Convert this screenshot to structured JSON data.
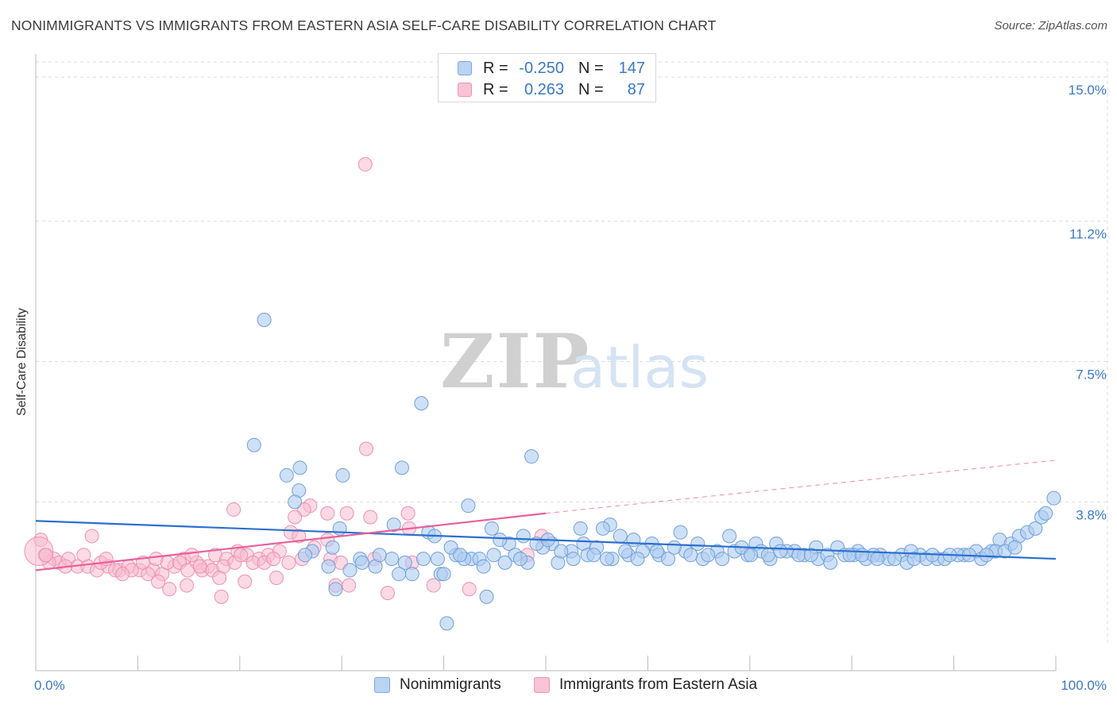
{
  "header": {
    "title": "NONIMMIGRANTS VS IMMIGRANTS FROM EASTERN ASIA SELF-CARE DISABILITY CORRELATION CHART",
    "source": "Source: ZipAtlas.com"
  },
  "colors": {
    "blue_fill": "#aecbf0",
    "blue_stroke": "#6fa0dc",
    "blue_line": "#2c6fcf",
    "pink_fill": "#f7bcd0",
    "pink_stroke": "#ef8fb0",
    "pink_line": "#e8609a",
    "axis_label": "#3a78c9",
    "grid": "#dcdcdc"
  },
  "legend": {
    "rows": [
      {
        "r_label": "R =",
        "r_value": "-0.250",
        "n_label": "N =",
        "n_value": "147"
      },
      {
        "r_label": "R =",
        "r_value": "0.263",
        "n_label": "N =",
        "n_value": "87"
      }
    ]
  },
  "chart_data": {
    "type": "scatter",
    "title": "NONIMMIGRANTS VS IMMIGRANTS FROM EASTERN ASIA SELF-CARE DISABILITY CORRELATION CHART",
    "xlabel": "",
    "ylabel": "Self-Care Disability",
    "x_tick_labels": [
      "0.0%",
      "100.0%"
    ],
    "y_tick_labels": [
      "15.0%",
      "11.2%",
      "7.5%",
      "3.8%"
    ],
    "y_ticks": [
      15.0,
      11.2,
      7.5,
      3.8
    ],
    "xlim": [
      0,
      100
    ],
    "ylim": [
      0,
      15.4
    ],
    "grid": true,
    "legend_position": "top-center",
    "watermark": "ZIPatlas",
    "series": [
      {
        "name": "Nonimmigrants",
        "R": -0.25,
        "N": 147,
        "trend": {
          "x": [
            0,
            100
          ],
          "y": [
            3.3,
            2.3
          ]
        },
        "points": [
          [
            22.4,
            8.6
          ],
          [
            37.8,
            6.4
          ],
          [
            21.4,
            5.3
          ],
          [
            48.6,
            5.0
          ],
          [
            25.9,
            4.7
          ],
          [
            35.9,
            4.7
          ],
          [
            24.6,
            4.5
          ],
          [
            30.1,
            4.5
          ],
          [
            25.8,
            4.1
          ],
          [
            25.4,
            3.8
          ],
          [
            42.4,
            3.7
          ],
          [
            29.8,
            3.1
          ],
          [
            35.1,
            3.2
          ],
          [
            44.7,
            3.1
          ],
          [
            38.5,
            3.0
          ],
          [
            39.1,
            2.9
          ],
          [
            29.1,
            2.6
          ],
          [
            27.1,
            2.5
          ],
          [
            46.4,
            2.7
          ],
          [
            50.6,
            2.7
          ],
          [
            53.4,
            3.1
          ],
          [
            53.7,
            2.7
          ],
          [
            56.3,
            3.2
          ],
          [
            55.6,
            3.1
          ],
          [
            57.3,
            2.9
          ],
          [
            60.4,
            2.7
          ],
          [
            63.2,
            3.0
          ],
          [
            64.9,
            2.7
          ],
          [
            68.0,
            2.9
          ],
          [
            70.6,
            2.7
          ],
          [
            72.6,
            2.7
          ],
          [
            74.4,
            2.5
          ],
          [
            76.5,
            2.6
          ],
          [
            78.6,
            2.6
          ],
          [
            80.6,
            2.5
          ],
          [
            82.8,
            2.4
          ],
          [
            84.9,
            2.4
          ],
          [
            86.7,
            2.4
          ],
          [
            88.4,
            2.3
          ],
          [
            91.0,
            2.4
          ],
          [
            92.2,
            2.5
          ],
          [
            93.7,
            2.5
          ],
          [
            94.5,
            2.8
          ],
          [
            95.6,
            2.7
          ],
          [
            96.4,
            2.9
          ],
          [
            97.2,
            3.0
          ],
          [
            98.0,
            3.1
          ],
          [
            98.6,
            3.4
          ],
          [
            99.0,
            3.5
          ],
          [
            99.8,
            3.9
          ],
          [
            31.8,
            2.3
          ],
          [
            33.3,
            2.1
          ],
          [
            34.9,
            2.3
          ],
          [
            36.9,
            1.9
          ],
          [
            39.4,
            2.3
          ],
          [
            39.7,
            1.9
          ],
          [
            41.2,
            2.4
          ],
          [
            42.7,
            2.3
          ],
          [
            43.5,
            2.3
          ],
          [
            44.9,
            2.4
          ],
          [
            47.0,
            2.4
          ],
          [
            48.2,
            2.2
          ],
          [
            49.7,
            2.6
          ],
          [
            51.2,
            2.2
          ],
          [
            52.5,
            2.5
          ],
          [
            54.1,
            2.4
          ],
          [
            55.0,
            2.6
          ],
          [
            56.5,
            2.3
          ],
          [
            58.1,
            2.4
          ],
          [
            59.5,
            2.5
          ],
          [
            61.1,
            2.4
          ],
          [
            62.0,
            2.3
          ],
          [
            63.7,
            2.5
          ],
          [
            65.4,
            2.3
          ],
          [
            66.8,
            2.5
          ],
          [
            68.5,
            2.5
          ],
          [
            69.8,
            2.4
          ],
          [
            71.1,
            2.5
          ],
          [
            72.0,
            2.3
          ],
          [
            73.6,
            2.5
          ],
          [
            75.3,
            2.4
          ],
          [
            76.7,
            2.3
          ],
          [
            77.6,
            2.4
          ],
          [
            79.3,
            2.4
          ],
          [
            80.2,
            2.4
          ],
          [
            81.4,
            2.3
          ],
          [
            82.1,
            2.4
          ],
          [
            83.6,
            2.3
          ],
          [
            85.8,
            2.5
          ],
          [
            87.3,
            2.3
          ],
          [
            89.1,
            2.3
          ],
          [
            90.4,
            2.4
          ],
          [
            91.5,
            2.4
          ],
          [
            92.7,
            2.3
          ],
          [
            94.1,
            2.5
          ],
          [
            95.0,
            2.5
          ],
          [
            96.0,
            2.6
          ],
          [
            26.4,
            2.4
          ],
          [
            28.7,
            2.1
          ],
          [
            30.8,
            2.0
          ],
          [
            33.7,
            2.4
          ],
          [
            36.2,
            2.2
          ],
          [
            38.0,
            2.3
          ],
          [
            40.7,
            2.6
          ],
          [
            42.0,
            2.3
          ],
          [
            43.9,
            2.1
          ],
          [
            46.0,
            2.2
          ],
          [
            47.5,
            2.3
          ],
          [
            49.1,
            2.7
          ],
          [
            51.5,
            2.5
          ],
          [
            52.7,
            2.3
          ],
          [
            54.7,
            2.4
          ],
          [
            56.0,
            2.3
          ],
          [
            57.8,
            2.5
          ],
          [
            59.0,
            2.3
          ],
          [
            60.9,
            2.5
          ],
          [
            62.6,
            2.6
          ],
          [
            64.2,
            2.4
          ],
          [
            65.9,
            2.4
          ],
          [
            67.3,
            2.3
          ],
          [
            69.2,
            2.6
          ],
          [
            70.1,
            2.4
          ],
          [
            71.8,
            2.4
          ],
          [
            73.0,
            2.5
          ],
          [
            74.8,
            2.4
          ],
          [
            76.0,
            2.4
          ],
          [
            77.9,
            2.2
          ],
          [
            79.8,
            2.4
          ],
          [
            81.0,
            2.4
          ],
          [
            82.5,
            2.3
          ],
          [
            84.2,
            2.3
          ],
          [
            85.4,
            2.2
          ],
          [
            86.1,
            2.3
          ],
          [
            87.9,
            2.4
          ],
          [
            89.6,
            2.4
          ],
          [
            93.2,
            2.4
          ],
          [
            29.4,
            1.5
          ],
          [
            40.0,
            1.9
          ],
          [
            44.2,
            1.3
          ],
          [
            35.6,
            1.9
          ],
          [
            40.3,
            0.6
          ],
          [
            32.0,
            2.2
          ],
          [
            41.6,
            2.4
          ],
          [
            45.5,
            2.8
          ],
          [
            47.8,
            2.9
          ],
          [
            50.2,
            2.8
          ],
          [
            58.6,
            2.8
          ]
        ]
      },
      {
        "name": "Immigrants from Eastern Asia",
        "R": 0.263,
        "N": 87,
        "trend": {
          "x": [
            0,
            50
          ],
          "y": [
            2.0,
            3.5
          ]
        },
        "trend_extension": {
          "x": [
            50,
            100
          ],
          "y": [
            3.5,
            4.9
          ]
        },
        "points": [
          [
            32.3,
            12.7
          ],
          [
            32.4,
            5.2
          ],
          [
            19.4,
            3.6
          ],
          [
            26.9,
            3.7
          ],
          [
            28.6,
            3.5
          ],
          [
            30.5,
            3.5
          ],
          [
            26.3,
            3.6
          ],
          [
            25.4,
            3.4
          ],
          [
            32.8,
            3.4
          ],
          [
            36.5,
            3.5
          ],
          [
            25.0,
            3.0
          ],
          [
            25.8,
            2.9
          ],
          [
            28.6,
            2.8
          ],
          [
            36.6,
            3.1
          ],
          [
            0.5,
            2.8
          ],
          [
            5.5,
            2.9
          ],
          [
            0.9,
            2.4
          ],
          [
            1.8,
            2.3
          ],
          [
            2.3,
            2.2
          ],
          [
            3.2,
            2.3
          ],
          [
            4.1,
            2.1
          ],
          [
            5.1,
            2.1
          ],
          [
            6.0,
            2.0
          ],
          [
            7.1,
            2.1
          ],
          [
            8.2,
            2.0
          ],
          [
            9.1,
            2.1
          ],
          [
            10.2,
            2.0
          ],
          [
            11.5,
            2.0
          ],
          [
            12.4,
            1.9
          ],
          [
            13.6,
            2.1
          ],
          [
            14.5,
            2.3
          ],
          [
            15.8,
            2.2
          ],
          [
            16.9,
            2.1
          ],
          [
            17.6,
            2.4
          ],
          [
            18.7,
            2.3
          ],
          [
            19.8,
            2.5
          ],
          [
            20.7,
            2.4
          ],
          [
            21.9,
            2.3
          ],
          [
            22.8,
            2.4
          ],
          [
            23.9,
            2.5
          ],
          [
            24.8,
            2.2
          ],
          [
            26.1,
            2.3
          ],
          [
            27.3,
            2.6
          ],
          [
            28.9,
            2.3
          ],
          [
            29.9,
            2.2
          ],
          [
            33.2,
            2.3
          ],
          [
            36.9,
            2.2
          ],
          [
            1.3,
            2.2
          ],
          [
            2.9,
            2.1
          ],
          [
            4.7,
            2.4
          ],
          [
            6.4,
            2.2
          ],
          [
            7.8,
            2.0
          ],
          [
            9.4,
            2.0
          ],
          [
            11.0,
            1.9
          ],
          [
            12.9,
            2.2
          ],
          [
            14.1,
            2.2
          ],
          [
            15.3,
            2.4
          ],
          [
            16.3,
            2.0
          ],
          [
            17.3,
            2.0
          ],
          [
            18.4,
            2.1
          ],
          [
            19.5,
            2.2
          ],
          [
            20.1,
            2.4
          ],
          [
            21.3,
            2.2
          ],
          [
            22.4,
            2.2
          ],
          [
            23.3,
            2.3
          ],
          [
            8.5,
            1.9
          ],
          [
            12.0,
            1.7
          ],
          [
            14.9,
            2.0
          ],
          [
            16.1,
            2.1
          ],
          [
            18.0,
            1.8
          ],
          [
            20.5,
            1.7
          ],
          [
            23.6,
            1.8
          ],
          [
            29.4,
            1.6
          ],
          [
            30.7,
            1.6
          ],
          [
            34.5,
            1.4
          ],
          [
            39.0,
            1.6
          ],
          [
            42.5,
            1.5
          ],
          [
            13.1,
            1.5
          ],
          [
            14.8,
            1.6
          ],
          [
            18.2,
            1.3
          ],
          [
            0.3,
            2.5
          ],
          [
            1.0,
            2.4
          ],
          [
            6.9,
            2.3
          ],
          [
            10.5,
            2.2
          ],
          [
            11.8,
            2.3
          ],
          [
            48.2,
            2.4
          ],
          [
            49.6,
            2.9
          ]
        ]
      }
    ]
  }
}
